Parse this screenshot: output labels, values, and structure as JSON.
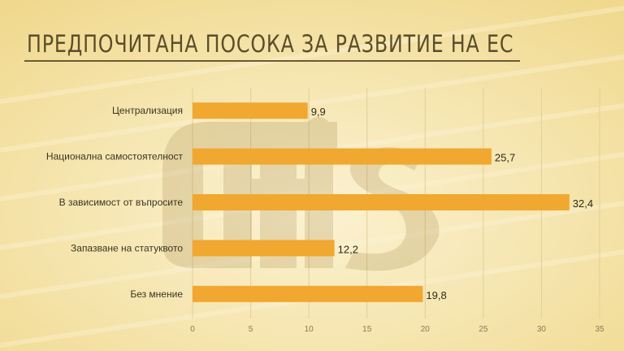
{
  "title": "ПРЕДПОЧИТАНА ПОСОКА ЗА РАЗВИТИЕ НА ЕС",
  "watermark": "afis",
  "colors": {
    "bar": "#f0a830",
    "background": "#f6e7b5",
    "title": "#5b4d2a"
  },
  "chart_data": {
    "type": "bar",
    "orientation": "horizontal",
    "categories": [
      "Централизация",
      "Национална самостоятелност",
      "В зависимост от въпросите",
      "Запазване на статуквото",
      "Без мнение"
    ],
    "values": [
      9.9,
      25.7,
      32.4,
      12.2,
      19.8
    ],
    "value_labels": [
      "9,9",
      "25,7",
      "32,4",
      "12,2",
      "19,8"
    ],
    "xlim": [
      0,
      35
    ],
    "xticks": [
      0,
      5,
      10,
      15,
      20,
      25,
      30,
      35
    ],
    "grid": true,
    "legend": "none"
  }
}
